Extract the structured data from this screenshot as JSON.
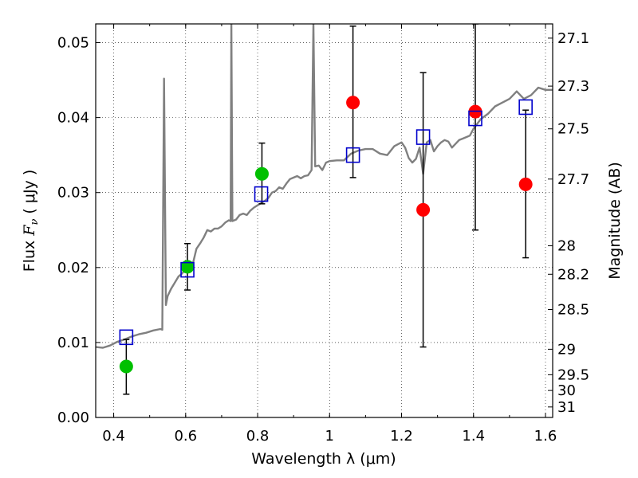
{
  "chart_data": {
    "type": "scatter",
    "xlabel": "Wavelength  λ (μm)",
    "ylabel_parts": [
      "Flux  ",
      "F",
      "ν",
      "  ( μJy )"
    ],
    "y2label": "Magnitude (AB)",
    "xlim": [
      0.35,
      1.62
    ],
    "ylim": [
      0.0,
      0.0525
    ],
    "grid": true,
    "x_ticks": [
      0.4,
      0.6,
      0.8,
      1.0,
      1.2,
      1.4,
      1.6
    ],
    "x_tick_labels": [
      "0.4",
      "0.6",
      "0.8",
      "1",
      "1.2",
      "1.4",
      "1.6"
    ],
    "y_ticks": [
      0.0,
      0.01,
      0.02,
      0.03,
      0.04,
      0.05
    ],
    "y_tick_labels": [
      "0.00",
      "0.01",
      "0.02",
      "0.03",
      "0.04",
      "0.05"
    ],
    "mag_ticks": [
      {
        "flux": 0.0506,
        "label": "27.1"
      },
      {
        "flux": 0.0442,
        "label": "27.3"
      },
      {
        "flux": 0.0385,
        "label": "27.5"
      },
      {
        "flux": 0.0318,
        "label": "27.7"
      },
      {
        "flux": 0.0229,
        "label": "28"
      },
      {
        "flux": 0.0191,
        "label": "28.2"
      },
      {
        "flux": 0.0144,
        "label": "28.5"
      },
      {
        "flux": 0.0091,
        "label": "29"
      },
      {
        "flux": 0.0057,
        "label": "29.5"
      },
      {
        "flux": 0.0036,
        "label": "30"
      },
      {
        "flux": 0.0014,
        "label": "31"
      }
    ],
    "series": [
      {
        "kind": "line",
        "color": "#808080",
        "points": [
          [
            0.35,
            0.0094
          ],
          [
            0.37,
            0.0093
          ],
          [
            0.39,
            0.0096
          ],
          [
            0.41,
            0.0101
          ],
          [
            0.43,
            0.0104
          ],
          [
            0.45,
            0.0108
          ],
          [
            0.47,
            0.0111
          ],
          [
            0.49,
            0.0113
          ],
          [
            0.51,
            0.0116
          ],
          [
            0.53,
            0.0118
          ],
          [
            0.535,
            0.0117
          ],
          [
            0.54,
            0.0452
          ],
          [
            0.545,
            0.015
          ],
          [
            0.55,
            0.0162
          ],
          [
            0.56,
            0.0172
          ],
          [
            0.57,
            0.018
          ],
          [
            0.58,
            0.0188
          ],
          [
            0.59,
            0.0192
          ],
          [
            0.6,
            0.0198
          ],
          [
            0.61,
            0.0202
          ],
          [
            0.615,
            0.0199
          ],
          [
            0.62,
            0.0205
          ],
          [
            0.63,
            0.0225
          ],
          [
            0.64,
            0.0232
          ],
          [
            0.65,
            0.024
          ],
          [
            0.66,
            0.025
          ],
          [
            0.67,
            0.0248
          ],
          [
            0.68,
            0.0252
          ],
          [
            0.69,
            0.0252
          ],
          [
            0.7,
            0.0255
          ],
          [
            0.71,
            0.026
          ],
          [
            0.72,
            0.0263
          ],
          [
            0.725,
            0.0262
          ],
          [
            0.727,
            0.0525
          ],
          [
            0.73,
            0.0262
          ],
          [
            0.74,
            0.0264
          ],
          [
            0.75,
            0.027
          ],
          [
            0.76,
            0.0272
          ],
          [
            0.77,
            0.027
          ],
          [
            0.78,
            0.0276
          ],
          [
            0.79,
            0.028
          ],
          [
            0.8,
            0.0283
          ],
          [
            0.81,
            0.0286
          ],
          [
            0.82,
            0.0289
          ],
          [
            0.83,
            0.0293
          ],
          [
            0.84,
            0.03
          ],
          [
            0.85,
            0.0302
          ],
          [
            0.86,
            0.0307
          ],
          [
            0.87,
            0.0305
          ],
          [
            0.88,
            0.0312
          ],
          [
            0.89,
            0.0318
          ],
          [
            0.9,
            0.032
          ],
          [
            0.91,
            0.0322
          ],
          [
            0.92,
            0.0319
          ],
          [
            0.93,
            0.0322
          ],
          [
            0.94,
            0.0323
          ],
          [
            0.95,
            0.033
          ],
          [
            0.955,
            0.0525
          ],
          [
            0.96,
            0.0335
          ],
          [
            0.97,
            0.0336
          ],
          [
            0.98,
            0.033
          ],
          [
            0.99,
            0.034
          ],
          [
            1.0,
            0.0342
          ],
          [
            1.02,
            0.0343
          ],
          [
            1.04,
            0.0343
          ],
          [
            1.06,
            0.0352
          ],
          [
            1.08,
            0.0356
          ],
          [
            1.1,
            0.0358
          ],
          [
            1.12,
            0.0358
          ],
          [
            1.14,
            0.0352
          ],
          [
            1.16,
            0.035
          ],
          [
            1.18,
            0.0362
          ],
          [
            1.2,
            0.0367
          ],
          [
            1.21,
            0.036
          ],
          [
            1.22,
            0.0346
          ],
          [
            1.23,
            0.034
          ],
          [
            1.24,
            0.0345
          ],
          [
            1.25,
            0.036
          ],
          [
            1.26,
            0.0325
          ],
          [
            1.27,
            0.0367
          ],
          [
            1.28,
            0.037
          ],
          [
            1.29,
            0.0355
          ],
          [
            1.3,
            0.0362
          ],
          [
            1.31,
            0.0367
          ],
          [
            1.32,
            0.037
          ],
          [
            1.33,
            0.0368
          ],
          [
            1.34,
            0.036
          ],
          [
            1.35,
            0.0365
          ],
          [
            1.36,
            0.037
          ],
          [
            1.37,
            0.0372
          ],
          [
            1.38,
            0.0374
          ],
          [
            1.39,
            0.0376
          ],
          [
            1.4,
            0.0385
          ],
          [
            1.42,
            0.0398
          ],
          [
            1.44,
            0.0405
          ],
          [
            1.46,
            0.0415
          ],
          [
            1.48,
            0.042
          ],
          [
            1.5,
            0.0425
          ],
          [
            1.52,
            0.0435
          ],
          [
            1.54,
            0.0425
          ],
          [
            1.56,
            0.043
          ],
          [
            1.58,
            0.044
          ],
          [
            1.6,
            0.0437
          ],
          [
            1.62,
            0.0437
          ]
        ]
      },
      {
        "kind": "points",
        "marker": "circle",
        "color": "#00c000",
        "points": [
          {
            "x": 0.435,
            "y": 0.0068,
            "err": [
              0.0031,
              0.0104
            ]
          },
          {
            "x": 0.605,
            "y": 0.0201,
            "err": [
              0.017,
              0.0232
            ]
          },
          {
            "x": 0.812,
            "y": 0.0325,
            "err": [
              0.0285,
              0.0366
            ]
          }
        ]
      },
      {
        "kind": "points",
        "marker": "circle",
        "color": "#ff0000",
        "points": [
          {
            "x": 1.065,
            "y": 0.042,
            "err": [
              0.032,
              0.0522
            ]
          },
          {
            "x": 1.26,
            "y": 0.0277,
            "err": [
              0.0094,
              0.046
            ]
          },
          {
            "x": 1.405,
            "y": 0.0408,
            "err": [
              0.025,
              0.0525
            ]
          },
          {
            "x": 1.545,
            "y": 0.0311,
            "err": [
              0.0213,
              0.041
            ]
          }
        ]
      },
      {
        "kind": "points",
        "marker": "square",
        "color": "#0000cc",
        "points": [
          {
            "x": 0.435,
            "y": 0.0107
          },
          {
            "x": 0.605,
            "y": 0.0197
          },
          {
            "x": 0.81,
            "y": 0.0298
          },
          {
            "x": 1.065,
            "y": 0.035
          },
          {
            "x": 1.26,
            "y": 0.0374
          },
          {
            "x": 1.405,
            "y": 0.0399
          },
          {
            "x": 1.545,
            "y": 0.0414
          }
        ]
      }
    ]
  }
}
